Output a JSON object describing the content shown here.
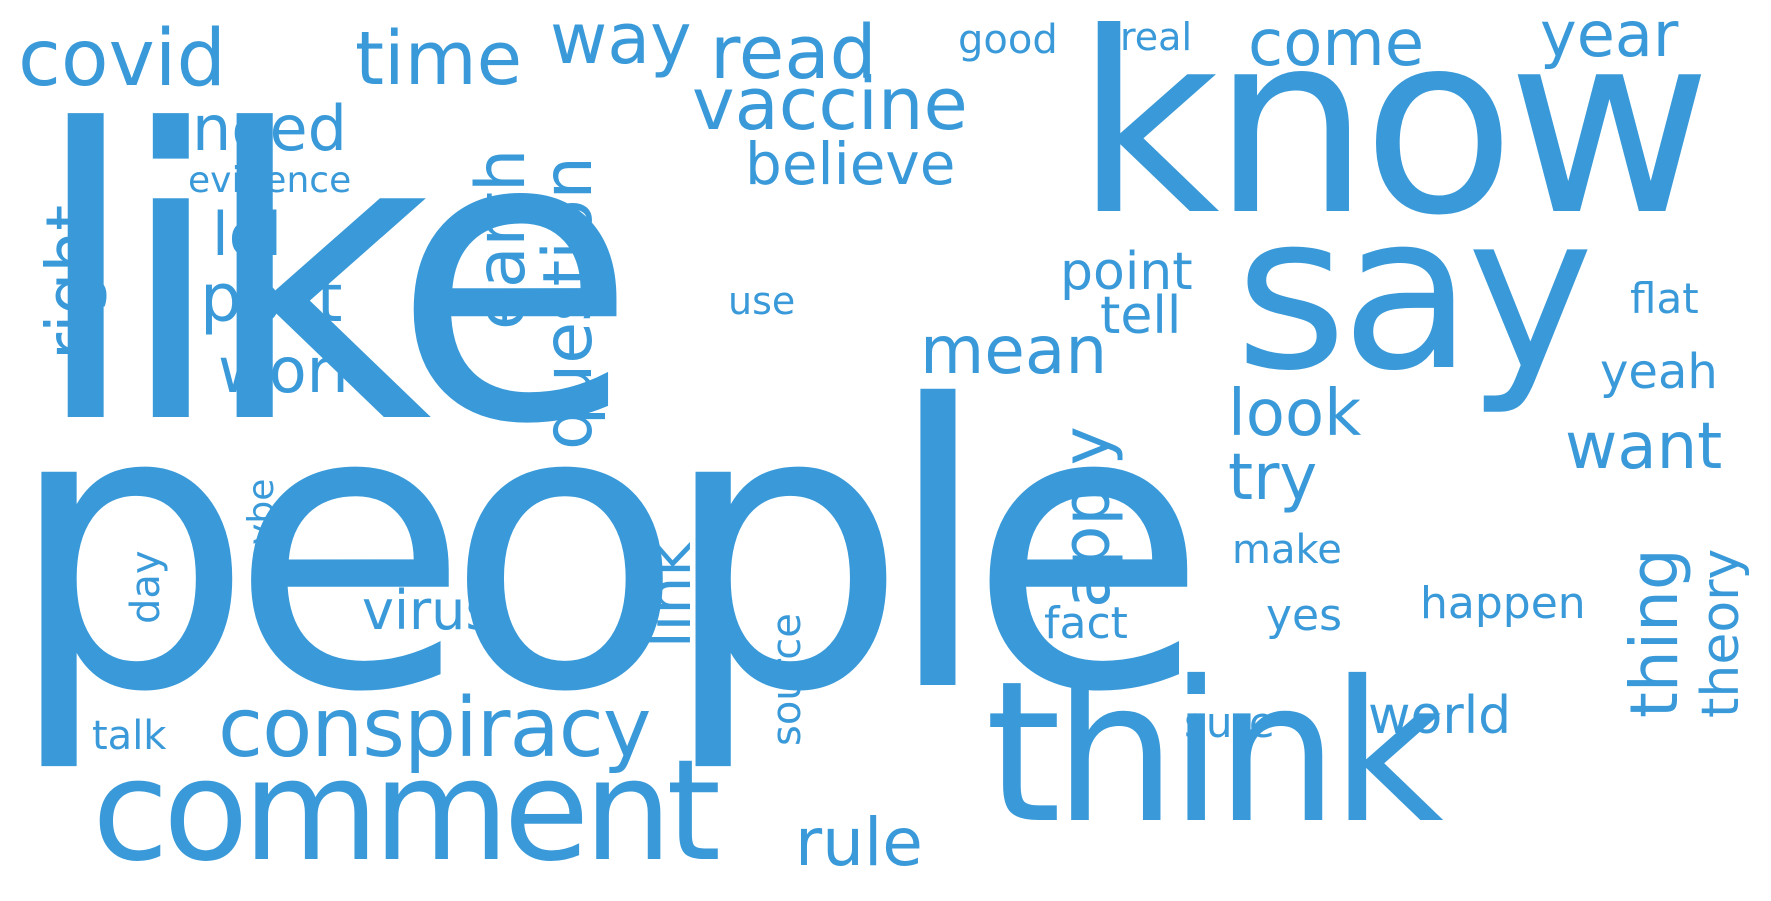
{
  "word_color": "#3a9ad9",
  "background_color": "#ffffff",
  "words": [
    "like",
    "people",
    "know",
    "say",
    "think",
    "comment",
    "conspiracy",
    "covid",
    "time",
    "way",
    "read",
    "come",
    "year",
    "good",
    "real",
    "vaccine",
    "need",
    "believe",
    "evidence",
    "lol",
    "post",
    "work",
    "right",
    "earth",
    "question",
    "point",
    "tell",
    "use",
    "flat",
    "mean",
    "yeah",
    "look",
    "want",
    "apply",
    "try",
    "thing",
    "theory",
    "make",
    "happen",
    "link",
    "virus",
    "maybe",
    "day",
    "fact",
    "yes",
    "source",
    "talk",
    "sure",
    "world",
    "rule"
  ]
}
